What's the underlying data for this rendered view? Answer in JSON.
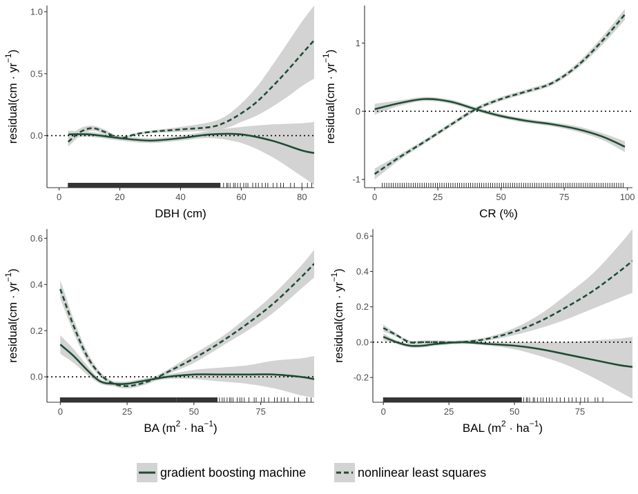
{
  "colors": {
    "line": "#1e4d33",
    "band": "#d3d3d3",
    "axis": "#333333",
    "ref": "#000000"
  },
  "legend": {
    "items": [
      {
        "label": "gradient boosting machine",
        "style": "solid"
      },
      {
        "label": "nonlinear least squares",
        "style": "dashed"
      }
    ]
  },
  "chart_data": [
    {
      "type": "line",
      "xlabel_main": "DBH (cm)",
      "ylabel_main": "residual",
      "ylabel_unit": "cm · yr",
      "ylabel_sup": "−1",
      "xlim": [
        -4,
        84
      ],
      "ylim": [
        -0.42,
        1.05
      ],
      "xticks": [
        0,
        20,
        40,
        60,
        80
      ],
      "yticks": [
        0.0,
        0.5,
        1.0
      ],
      "ytick_labels": [
        "0.0",
        "0.5",
        "1.0"
      ],
      "reference_y": 0,
      "grid": false,
      "rug": "dense",
      "rug_range": [
        3,
        84
      ],
      "series": [
        {
          "name": "gradient boosting machine",
          "style": "solid",
          "x": [
            3,
            10,
            20,
            30,
            40,
            50,
            60,
            70,
            80,
            84
          ],
          "y": [
            0.01,
            0.01,
            -0.02,
            -0.04,
            -0.02,
            0.01,
            0.01,
            -0.04,
            -0.12,
            -0.14
          ],
          "lower": [
            -0.02,
            -0.01,
            -0.04,
            -0.06,
            -0.04,
            -0.02,
            -0.06,
            -0.17,
            -0.33,
            -0.4
          ],
          "upper": [
            0.04,
            0.03,
            0.0,
            -0.02,
            0.0,
            0.04,
            0.07,
            0.09,
            0.1,
            0.11
          ]
        },
        {
          "name": "nonlinear least squares",
          "style": "dashed",
          "x": [
            3,
            7,
            11,
            15,
            20,
            25,
            30,
            40,
            50,
            55,
            60,
            65,
            70,
            75,
            80,
            84
          ],
          "y": [
            -0.05,
            0.03,
            0.06,
            0.03,
            -0.02,
            0.01,
            0.03,
            0.05,
            0.07,
            0.11,
            0.18,
            0.27,
            0.39,
            0.52,
            0.66,
            0.77
          ],
          "lower": [
            -0.09,
            0.0,
            0.04,
            0.01,
            -0.03,
            0.0,
            0.02,
            0.03,
            0.04,
            0.06,
            0.11,
            0.16,
            0.23,
            0.31,
            0.4,
            0.46
          ],
          "upper": [
            -0.01,
            0.06,
            0.08,
            0.05,
            -0.01,
            0.02,
            0.04,
            0.07,
            0.11,
            0.16,
            0.26,
            0.39,
            0.56,
            0.74,
            0.92,
            1.05
          ]
        }
      ]
    },
    {
      "type": "line",
      "xlabel_main": "CR (%)",
      "ylabel_main": "residual",
      "ylabel_unit": "cm · yr",
      "ylabel_sup": "−1",
      "xlim": [
        -4,
        102
      ],
      "ylim": [
        -1.12,
        1.55
      ],
      "xticks": [
        0,
        25,
        50,
        75,
        100
      ],
      "yticks": [
        -1,
        0,
        1
      ],
      "ytick_labels": [
        "-1",
        "0",
        "1"
      ],
      "reference_y": 0,
      "grid": false,
      "rug": "sparse",
      "rug_range": [
        3,
        99
      ],
      "series": [
        {
          "name": "gradient boosting machine",
          "style": "solid",
          "x": [
            0,
            10,
            20,
            30,
            40,
            50,
            60,
            70,
            80,
            90,
            99
          ],
          "y": [
            0.03,
            0.12,
            0.18,
            0.14,
            0.03,
            -0.07,
            -0.14,
            -0.19,
            -0.26,
            -0.37,
            -0.52
          ],
          "lower": [
            -0.05,
            0.08,
            0.15,
            0.11,
            0.0,
            -0.1,
            -0.17,
            -0.22,
            -0.3,
            -0.42,
            -0.6
          ],
          "upper": [
            0.11,
            0.16,
            0.21,
            0.17,
            0.06,
            -0.04,
            -0.11,
            -0.16,
            -0.22,
            -0.32,
            -0.44
          ]
        },
        {
          "name": "nonlinear least squares",
          "style": "dashed",
          "x": [
            0,
            10,
            20,
            30,
            40,
            50,
            60,
            70,
            80,
            90,
            99
          ],
          "y": [
            -0.92,
            -0.67,
            -0.44,
            -0.2,
            0.03,
            0.18,
            0.29,
            0.41,
            0.66,
            1.03,
            1.42
          ],
          "lower": [
            -1.0,
            -0.71,
            -0.47,
            -0.23,
            0.0,
            0.15,
            0.26,
            0.38,
            0.62,
            0.97,
            1.34
          ],
          "upper": [
            -0.84,
            -0.63,
            -0.41,
            -0.17,
            0.06,
            0.21,
            0.32,
            0.44,
            0.7,
            1.09,
            1.5
          ]
        }
      ]
    },
    {
      "type": "line",
      "xlabel_main": "BA",
      "xlabel_unit": "m · ha",
      "xlabel_sup1": "2",
      "xlabel_sup2": "−1",
      "ylabel_main": "residual",
      "ylabel_unit": "cm · yr",
      "ylabel_sup": "−1",
      "xlim": [
        -5,
        95
      ],
      "ylim": [
        -0.11,
        0.64
      ],
      "xticks": [
        0,
        25,
        50,
        75
      ],
      "yticks": [
        0.0,
        0.2,
        0.4,
        0.6
      ],
      "ytick_labels": [
        "0.0",
        "0.2",
        "0.4",
        "0.6"
      ],
      "reference_y": 0,
      "grid": false,
      "rug": "dense",
      "rug_range": [
        0,
        95
      ],
      "series": [
        {
          "name": "gradient boosting machine",
          "style": "solid",
          "x": [
            0,
            5,
            10,
            15,
            20,
            25,
            30,
            40,
            50,
            60,
            70,
            80,
            90,
            95
          ],
          "y": [
            0.14,
            0.09,
            0.03,
            -0.02,
            -0.03,
            -0.03,
            -0.02,
            0.0,
            0.01,
            0.01,
            0.01,
            0.01,
            0.0,
            -0.01
          ],
          "lower": [
            0.1,
            0.06,
            0.01,
            -0.03,
            -0.04,
            -0.04,
            -0.03,
            -0.01,
            -0.01,
            -0.02,
            -0.03,
            -0.05,
            -0.08,
            -0.09
          ],
          "upper": [
            0.18,
            0.12,
            0.05,
            -0.01,
            -0.02,
            -0.02,
            -0.01,
            0.01,
            0.03,
            0.04,
            0.05,
            0.07,
            0.08,
            0.09
          ]
        },
        {
          "name": "nonlinear least squares",
          "style": "dashed",
          "x": [
            0,
            5,
            10,
            15,
            20,
            25,
            30,
            35,
            40,
            50,
            60,
            70,
            80,
            90,
            95
          ],
          "y": [
            0.38,
            0.22,
            0.09,
            0.01,
            -0.03,
            -0.04,
            -0.03,
            -0.01,
            0.02,
            0.08,
            0.15,
            0.23,
            0.32,
            0.43,
            0.49
          ],
          "lower": [
            0.34,
            0.19,
            0.07,
            0.0,
            -0.04,
            -0.05,
            -0.04,
            -0.02,
            0.01,
            0.06,
            0.13,
            0.2,
            0.28,
            0.38,
            0.43
          ],
          "upper": [
            0.42,
            0.25,
            0.11,
            0.02,
            -0.02,
            -0.03,
            -0.02,
            0.0,
            0.03,
            0.1,
            0.17,
            0.26,
            0.36,
            0.48,
            0.55
          ]
        }
      ]
    },
    {
      "type": "line",
      "xlabel_main": "BAL",
      "xlabel_unit": "m · ha",
      "xlabel_sup1": "2",
      "xlabel_sup2": "−1",
      "ylabel_main": "residual",
      "ylabel_unit": "cm · yr",
      "ylabel_sup": "−1",
      "xlim": [
        -4,
        95
      ],
      "ylim": [
        -0.34,
        0.64
      ],
      "xticks": [
        0,
        25,
        50,
        75
      ],
      "yticks": [
        -0.2,
        0.0,
        0.2,
        0.4,
        0.6
      ],
      "ytick_labels": [
        "-0.2",
        "0.0",
        "0.2",
        "0.4",
        "0.6"
      ],
      "reference_y": 0,
      "grid": false,
      "rug": "dense",
      "rug_range": [
        0,
        85
      ],
      "series": [
        {
          "name": "gradient boosting machine",
          "style": "solid",
          "x": [
            0,
            5,
            10,
            15,
            20,
            30,
            40,
            50,
            60,
            70,
            80,
            90,
            95
          ],
          "y": [
            0.03,
            0.0,
            -0.02,
            -0.02,
            -0.01,
            0.0,
            -0.01,
            -0.02,
            -0.04,
            -0.07,
            -0.1,
            -0.13,
            -0.14
          ],
          "lower": [
            0.01,
            -0.01,
            -0.03,
            -0.03,
            -0.02,
            -0.01,
            -0.02,
            -0.04,
            -0.08,
            -0.13,
            -0.2,
            -0.28,
            -0.32
          ],
          "upper": [
            0.05,
            0.01,
            -0.01,
            -0.01,
            0.0,
            0.01,
            0.0,
            0.0,
            0.0,
            0.0,
            0.01,
            0.02,
            0.03
          ]
        },
        {
          "name": "nonlinear least squares",
          "style": "dashed",
          "x": [
            0,
            5,
            10,
            15,
            20,
            30,
            40,
            50,
            60,
            70,
            80,
            90,
            95
          ],
          "y": [
            0.08,
            0.04,
            0.0,
            0.0,
            0.0,
            0.0,
            0.02,
            0.06,
            0.12,
            0.2,
            0.29,
            0.4,
            0.46
          ],
          "lower": [
            0.06,
            0.03,
            -0.01,
            -0.01,
            -0.01,
            -0.01,
            0.01,
            0.04,
            0.08,
            0.13,
            0.19,
            0.25,
            0.28
          ],
          "upper": [
            0.1,
            0.05,
            0.01,
            0.01,
            0.01,
            0.01,
            0.03,
            0.08,
            0.16,
            0.27,
            0.39,
            0.55,
            0.64
          ]
        }
      ]
    }
  ]
}
